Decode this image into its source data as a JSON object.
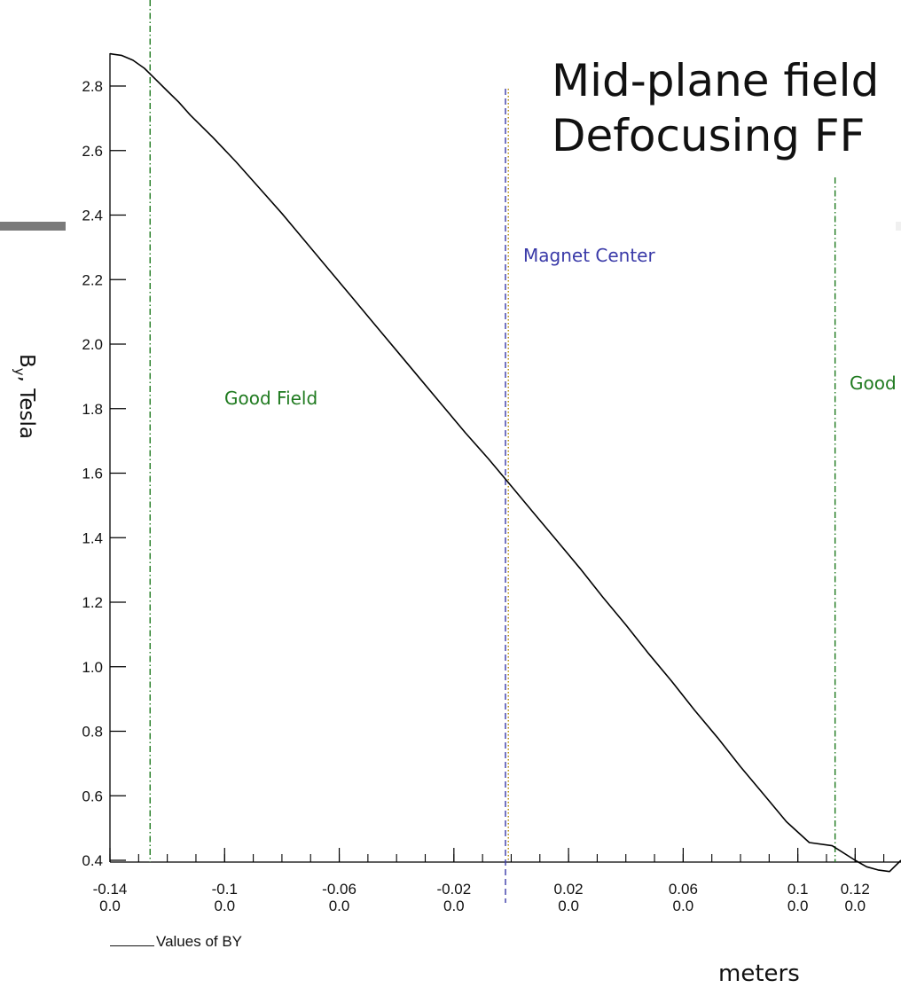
{
  "title": [
    "Mid-plane field",
    "Defocusing FF"
  ],
  "chart_data": {
    "type": "line",
    "title": "Mid-plane field Defocusing FF",
    "xlabel": "meters",
    "ylabel": "B_y, Tesla",
    "xlim": [
      -0.14,
      0.136
    ],
    "ylim": [
      0.4,
      2.9
    ],
    "yticks": [
      "0.4",
      "0.6",
      "0.8",
      "1.0",
      "1.2",
      "1.4",
      "1.6",
      "1.8",
      "2.0",
      "2.2",
      "2.4",
      "2.6",
      "2.8"
    ],
    "xticks": [
      {
        "value": -0.14,
        "label": "-0.14",
        "sub": "0.0"
      },
      {
        "value": -0.1,
        "label": "-0.1",
        "sub": "0.0"
      },
      {
        "value": -0.06,
        "label": "-0.06",
        "sub": "0.0"
      },
      {
        "value": -0.02,
        "label": "-0.02",
        "sub": "0.0"
      },
      {
        "value": 0.02,
        "label": "0.02",
        "sub": "0.0"
      },
      {
        "value": 0.06,
        "label": "0.06",
        "sub": "0.0"
      },
      {
        "value": 0.1,
        "label": "0.1",
        "sub": "0.0"
      },
      {
        "value": 0.12,
        "label": "0.12",
        "sub": "0.0"
      }
    ],
    "series": [
      {
        "name": "Values of BY",
        "color": "#000000",
        "x": [
          -0.14,
          -0.136,
          -0.132,
          -0.128,
          -0.124,
          -0.12,
          -0.116,
          -0.112,
          -0.104,
          -0.096,
          -0.088,
          -0.08,
          -0.072,
          -0.064,
          -0.056,
          -0.048,
          -0.04,
          -0.032,
          -0.024,
          -0.016,
          -0.008,
          0.0,
          0.008,
          0.016,
          0.024,
          0.032,
          0.04,
          0.048,
          0.056,
          0.064,
          0.072,
          0.08,
          0.088,
          0.096,
          0.104,
          0.112,
          0.12,
          0.124,
          0.128,
          0.132,
          0.136
        ],
        "y": [
          2.9,
          2.895,
          2.88,
          2.855,
          2.82,
          2.785,
          2.75,
          2.71,
          2.64,
          2.565,
          2.485,
          2.405,
          2.32,
          2.235,
          2.15,
          2.065,
          1.98,
          1.895,
          1.81,
          1.725,
          1.645,
          1.56,
          1.475,
          1.39,
          1.305,
          1.215,
          1.13,
          1.04,
          0.955,
          0.865,
          0.78,
          0.69,
          0.605,
          0.52,
          0.455,
          0.445,
          0.4,
          0.38,
          0.37,
          0.365,
          0.4
        ]
      }
    ],
    "vlines": [
      {
        "x": -0.126,
        "style": "dashdot",
        "color": "#1f7a1f"
      },
      {
        "x": 0.113,
        "style": "dashdot",
        "color": "#1f7a1f"
      },
      {
        "x": -0.002,
        "style": "dashed",
        "color": "#3a3aa8"
      },
      {
        "x": -0.001,
        "style": "dotted",
        "color": "#b38a00"
      }
    ],
    "annotations": [
      {
        "text": "Good Field",
        "color": "#1f7a1f"
      },
      {
        "text": "Magnet Center",
        "color": "#3a3aa8"
      },
      {
        "text": "Good",
        "color": "#1f7a1f"
      }
    ],
    "legend": "Values of BY",
    "grid": false
  }
}
